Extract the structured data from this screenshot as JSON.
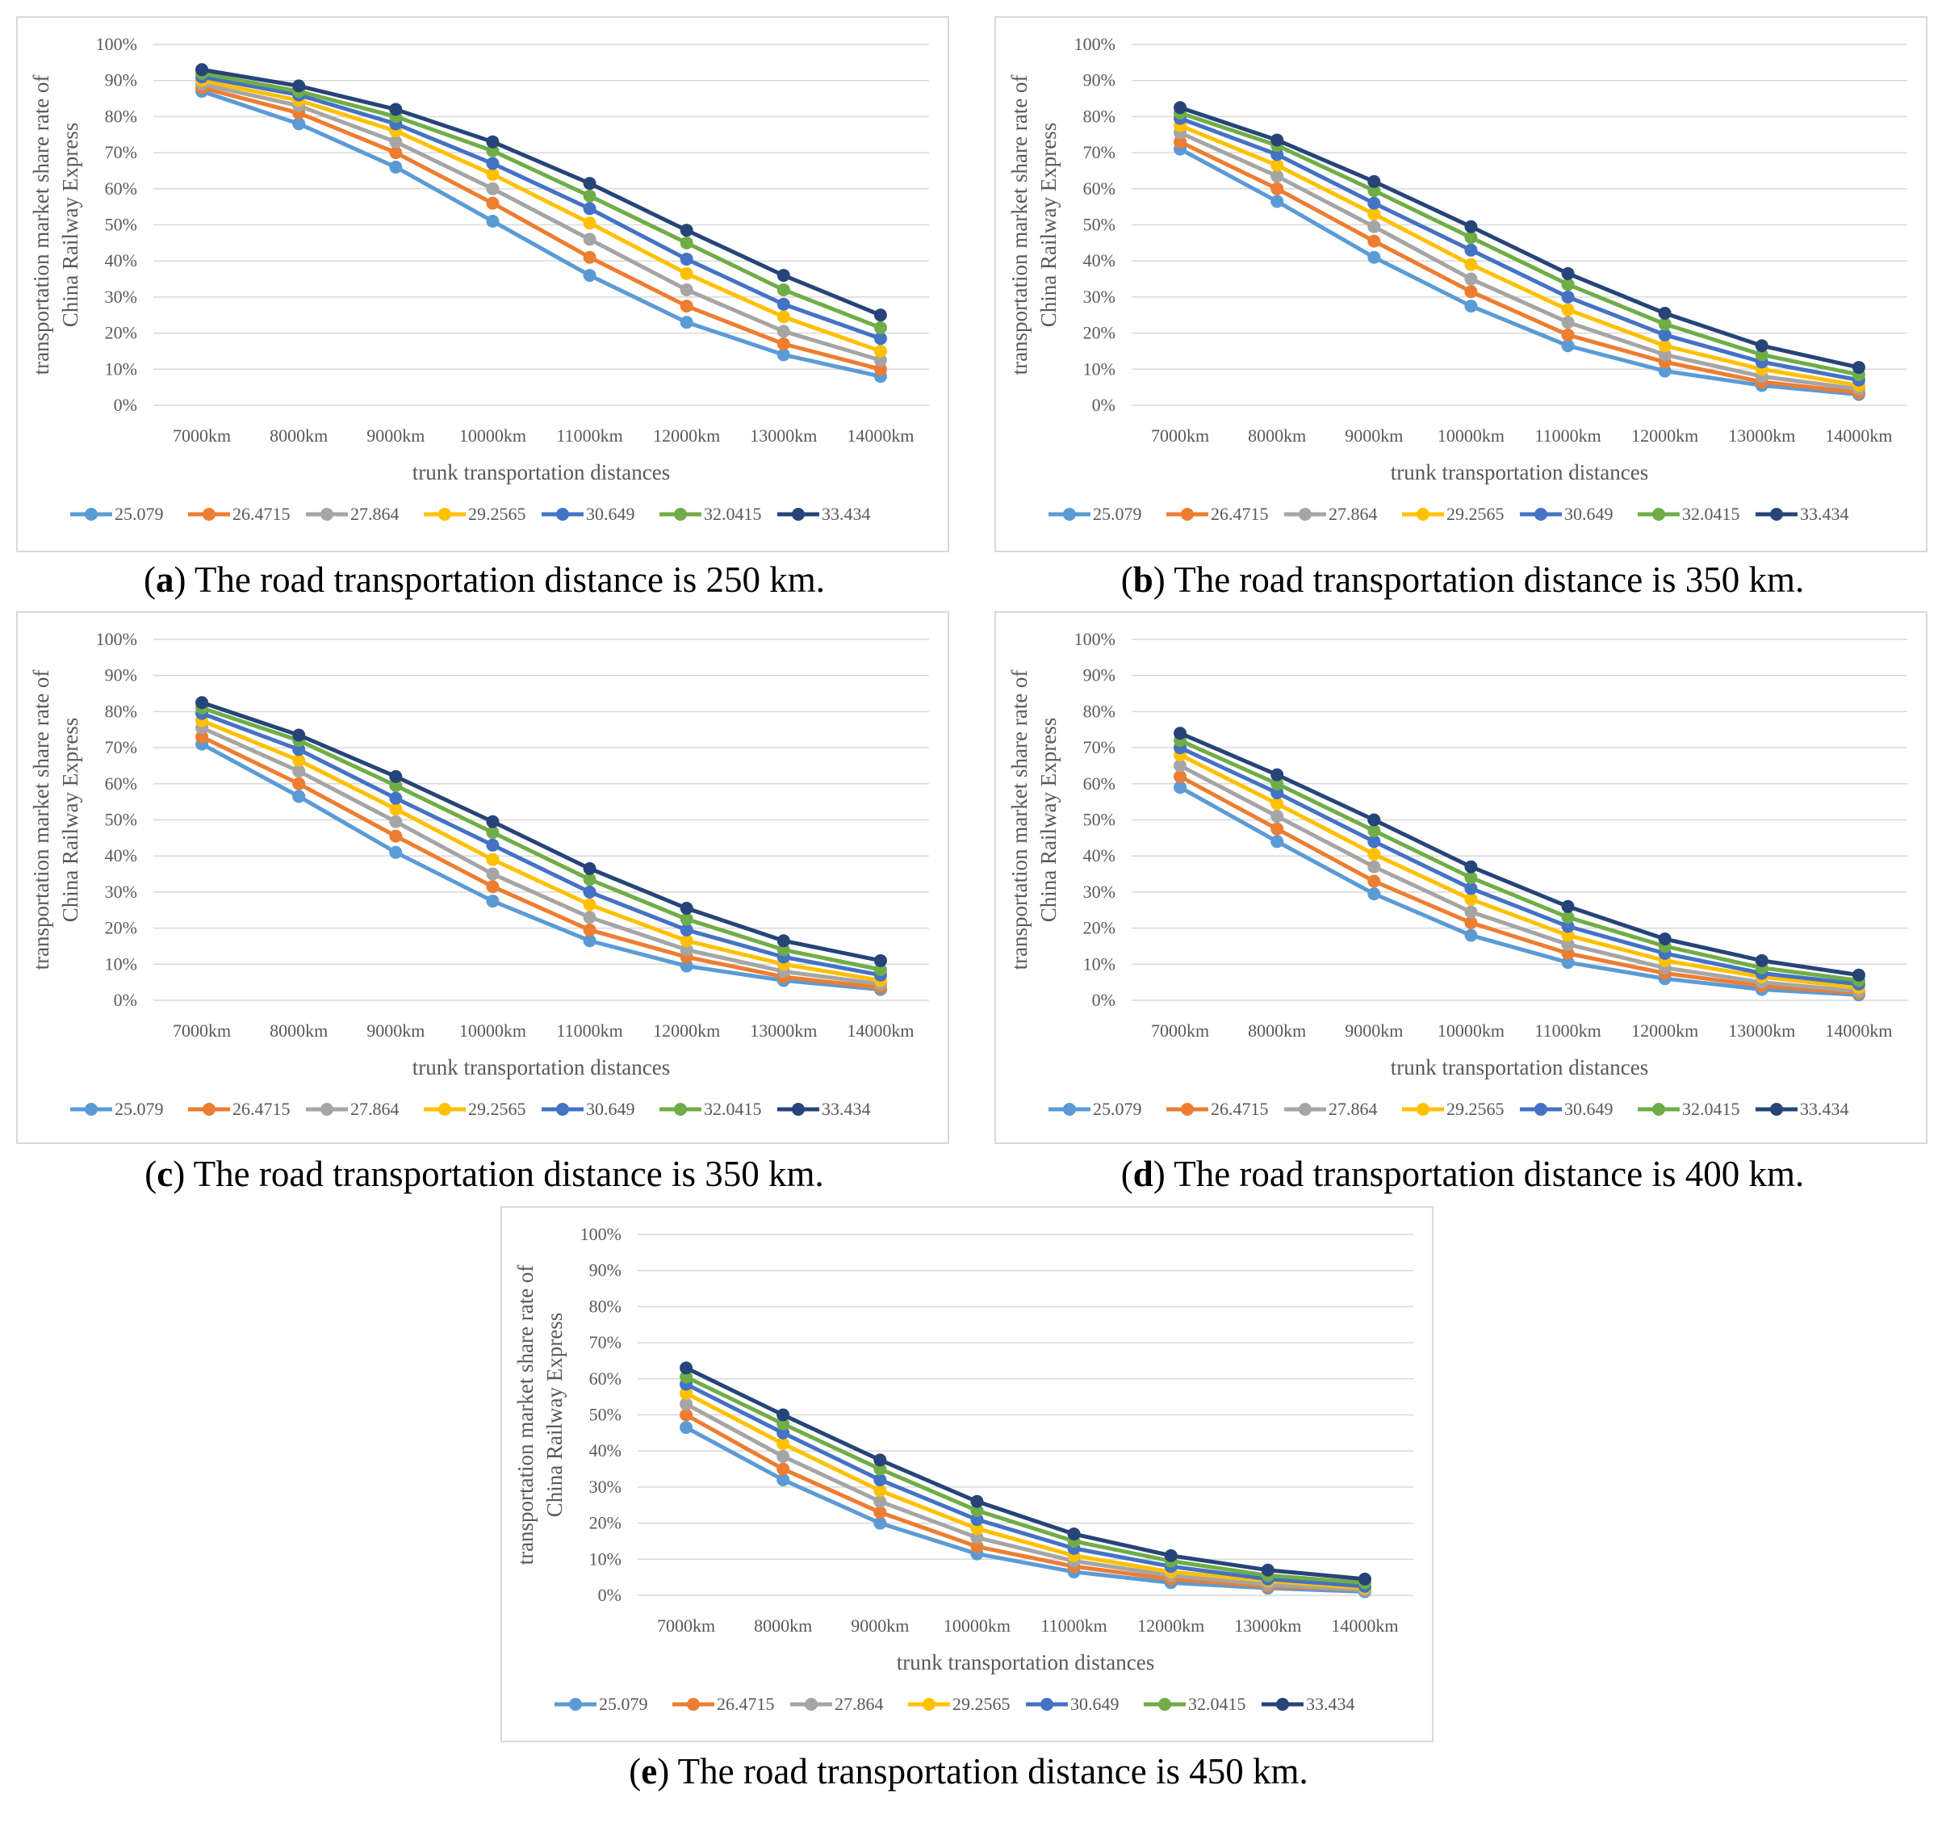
{
  "chart_data": [
    {
      "id": "a",
      "type": "line",
      "caption_letter": "a",
      "caption_text": " The road transportation distance is 250 km.",
      "ylabel_line1": "transportation market share rate of",
      "ylabel_line2": "China Railway Express",
      "xlabel": "trunk transportation distances",
      "categories": [
        "7000km",
        "8000km",
        "9000km",
        "10000km",
        "11000km",
        "12000km",
        "13000km",
        "14000km"
      ],
      "yticks": [
        "0%",
        "10%",
        "20%",
        "30%",
        "40%",
        "50%",
        "60%",
        "70%",
        "80%",
        "90%",
        "100%"
      ],
      "ylim": [
        0,
        100
      ],
      "series": [
        {
          "name": "25.079",
          "color": "#5b9bd5",
          "values": [
            87,
            78,
            66,
            51,
            36,
            23,
            14,
            8
          ]
        },
        {
          "name": "26.4715",
          "color": "#ed7d31",
          "values": [
            88,
            81,
            70,
            56,
            41,
            27.5,
            17,
            10
          ]
        },
        {
          "name": "27.864",
          "color": "#a5a5a5",
          "values": [
            89,
            83,
            73,
            60,
            46,
            32,
            20.5,
            12.5
          ]
        },
        {
          "name": "29.2565",
          "color": "#ffc000",
          "values": [
            90,
            84.5,
            76,
            64,
            50.5,
            36.5,
            24.5,
            15
          ]
        },
        {
          "name": "30.649",
          "color": "#4472c4",
          "values": [
            91,
            86,
            78,
            67,
            54.5,
            40.5,
            28,
            18.5
          ]
        },
        {
          "name": "32.0415",
          "color": "#70ad47",
          "values": [
            92,
            87,
            80,
            70.5,
            58,
            45,
            32,
            21.5
          ]
        },
        {
          "name": "33.434",
          "color": "#264478",
          "values": [
            93,
            88.5,
            82,
            73,
            61.5,
            48.5,
            36,
            25
          ]
        }
      ]
    },
    {
      "id": "b",
      "type": "line",
      "caption_letter": "b",
      "caption_text": " The road transportation distance is 350 km.",
      "ylabel_line1": "transportation market share rate of",
      "ylabel_line2": "China Railway Express",
      "xlabel": "trunk transportation distances",
      "categories": [
        "7000km",
        "8000km",
        "9000km",
        "10000km",
        "11000km",
        "12000km",
        "13000km",
        "14000km"
      ],
      "yticks": [
        "0%",
        "10%",
        "20%",
        "30%",
        "40%",
        "50%",
        "60%",
        "70%",
        "80%",
        "90%",
        "100%"
      ],
      "ylim": [
        0,
        100
      ],
      "series": [
        {
          "name": "25.079",
          "color": "#5b9bd5",
          "values": [
            71,
            56.5,
            41,
            27.5,
            16.5,
            9.5,
            5.5,
            3
          ]
        },
        {
          "name": "26.4715",
          "color": "#ed7d31",
          "values": [
            73,
            60,
            45.5,
            31.5,
            19.5,
            12,
            6.5,
            3.5
          ]
        },
        {
          "name": "27.864",
          "color": "#a5a5a5",
          "values": [
            75.5,
            63.5,
            49.5,
            35,
            23,
            14,
            8,
            4.5
          ]
        },
        {
          "name": "29.2565",
          "color": "#ffc000",
          "values": [
            77.5,
            66.5,
            53,
            39,
            26.5,
            16.5,
            10,
            5.5
          ]
        },
        {
          "name": "30.649",
          "color": "#4472c4",
          "values": [
            79.5,
            69.5,
            56,
            43,
            30,
            19.5,
            12,
            7
          ]
        },
        {
          "name": "32.0415",
          "color": "#70ad47",
          "values": [
            81,
            72,
            59.5,
            46.5,
            33.5,
            22.5,
            14,
            8.5
          ]
        },
        {
          "name": "33.434",
          "color": "#264478",
          "values": [
            82.5,
            73.5,
            62,
            49.5,
            36.5,
            25.5,
            16.5,
            10.5
          ]
        }
      ]
    },
    {
      "id": "c",
      "type": "line",
      "caption_letter": "c",
      "caption_text": " The road transportation distance is 350 km.",
      "ylabel_line1": "transportation market share rate of",
      "ylabel_line2": "China Railway Express",
      "xlabel": "trunk transportation distances",
      "categories": [
        "7000km",
        "8000km",
        "9000km",
        "10000km",
        "11000km",
        "12000km",
        "13000km",
        "14000km"
      ],
      "yticks": [
        "0%",
        "10%",
        "20%",
        "30%",
        "40%",
        "50%",
        "60%",
        "70%",
        "80%",
        "90%",
        "100%"
      ],
      "ylim": [
        0,
        100
      ],
      "series": [
        {
          "name": "25.079",
          "color": "#5b9bd5",
          "values": [
            71,
            56.5,
            41,
            27.5,
            16.5,
            9.5,
            5.5,
            3
          ]
        },
        {
          "name": "26.4715",
          "color": "#ed7d31",
          "values": [
            73,
            60,
            45.5,
            31.5,
            19.5,
            12,
            6.5,
            3.5
          ]
        },
        {
          "name": "27.864",
          "color": "#a5a5a5",
          "values": [
            75.5,
            63.5,
            49.5,
            35,
            23,
            14,
            8,
            4.5
          ]
        },
        {
          "name": "29.2565",
          "color": "#ffc000",
          "values": [
            77.5,
            66.5,
            53,
            39,
            26.5,
            16.5,
            10,
            5.5
          ]
        },
        {
          "name": "30.649",
          "color": "#4472c4",
          "values": [
            79.5,
            69.5,
            56,
            43,
            30,
            19.5,
            12,
            7
          ]
        },
        {
          "name": "32.0415",
          "color": "#70ad47",
          "values": [
            81,
            72,
            59.5,
            46.5,
            33.5,
            22.5,
            14,
            8.5
          ]
        },
        {
          "name": "33.434",
          "color": "#264478",
          "values": [
            82.5,
            73.5,
            62,
            49.5,
            36.5,
            25.5,
            16.5,
            11
          ]
        }
      ]
    },
    {
      "id": "d",
      "type": "line",
      "caption_letter": "d",
      "caption_text": " The road transportation distance is 400 km.",
      "ylabel_line1": "transportation market share rate of",
      "ylabel_line2": "China Railway Express",
      "xlabel": "trunk transportation distances",
      "categories": [
        "7000km",
        "8000km",
        "9000km",
        "10000km",
        "11000km",
        "12000km",
        "13000km",
        "14000km"
      ],
      "yticks": [
        "0%",
        "10%",
        "20%",
        "30%",
        "40%",
        "50%",
        "60%",
        "70%",
        "80%",
        "90%",
        "100%"
      ],
      "ylim": [
        0,
        100
      ],
      "series": [
        {
          "name": "25.079",
          "color": "#5b9bd5",
          "values": [
            59,
            44,
            29.5,
            18,
            10.5,
            6,
            3,
            1.5
          ]
        },
        {
          "name": "26.4715",
          "color": "#ed7d31",
          "values": [
            62,
            47.5,
            33,
            21.5,
            13,
            7.5,
            4,
            2
          ]
        },
        {
          "name": "27.864",
          "color": "#a5a5a5",
          "values": [
            65,
            51,
            37,
            24.5,
            15.5,
            9,
            5,
            2.5
          ]
        },
        {
          "name": "29.2565",
          "color": "#ffc000",
          "values": [
            68,
            54.5,
            40.5,
            28,
            18,
            11,
            6.5,
            3.5
          ]
        },
        {
          "name": "30.649",
          "color": "#4472c4",
          "values": [
            70,
            57.5,
            44,
            31,
            20.5,
            13,
            7.5,
            4.5
          ]
        },
        {
          "name": "32.0415",
          "color": "#70ad47",
          "values": [
            72,
            60,
            47,
            34,
            23,
            15,
            9,
            5.5
          ]
        },
        {
          "name": "33.434",
          "color": "#264478",
          "values": [
            74,
            62.5,
            50,
            37,
            26,
            17,
            11,
            7
          ]
        }
      ]
    },
    {
      "id": "e",
      "type": "line",
      "caption_letter": "e",
      "caption_text": " The road transportation distance is 450 km.",
      "ylabel_line1": "transportation market share rate of",
      "ylabel_line2": "China Railway Express",
      "xlabel": "trunk transportation distances",
      "categories": [
        "7000km",
        "8000km",
        "9000km",
        "10000km",
        "11000km",
        "12000km",
        "13000km",
        "14000km"
      ],
      "yticks": [
        "0%",
        "10%",
        "20%",
        "30%",
        "40%",
        "50%",
        "60%",
        "70%",
        "80%",
        "90%",
        "100%"
      ],
      "ylim": [
        0,
        100
      ],
      "series": [
        {
          "name": "25.079",
          "color": "#5b9bd5",
          "values": [
            46.5,
            32,
            20,
            11.5,
            6.5,
            3.5,
            2,
            1
          ]
        },
        {
          "name": "26.4715",
          "color": "#ed7d31",
          "values": [
            50,
            35,
            23,
            13.5,
            8,
            4.5,
            2.5,
            1.5
          ]
        },
        {
          "name": "27.864",
          "color": "#a5a5a5",
          "values": [
            53,
            38.5,
            26,
            16,
            9.5,
            5.5,
            3,
            1.5
          ]
        },
        {
          "name": "29.2565",
          "color": "#ffc000",
          "values": [
            56,
            42,
            29,
            18.5,
            11,
            6.5,
            4,
            2
          ]
        },
        {
          "name": "30.649",
          "color": "#4472c4",
          "values": [
            58.5,
            45,
            32,
            21,
            13,
            8,
            4.5,
            2.5
          ]
        },
        {
          "name": "32.0415",
          "color": "#70ad47",
          "values": [
            60.5,
            47.5,
            35,
            23.5,
            15,
            9.5,
            5.5,
            3.5
          ]
        },
        {
          "name": "33.434",
          "color": "#264478",
          "values": [
            63,
            50,
            37.5,
            26,
            17,
            11,
            7,
            4.5
          ]
        }
      ]
    }
  ]
}
